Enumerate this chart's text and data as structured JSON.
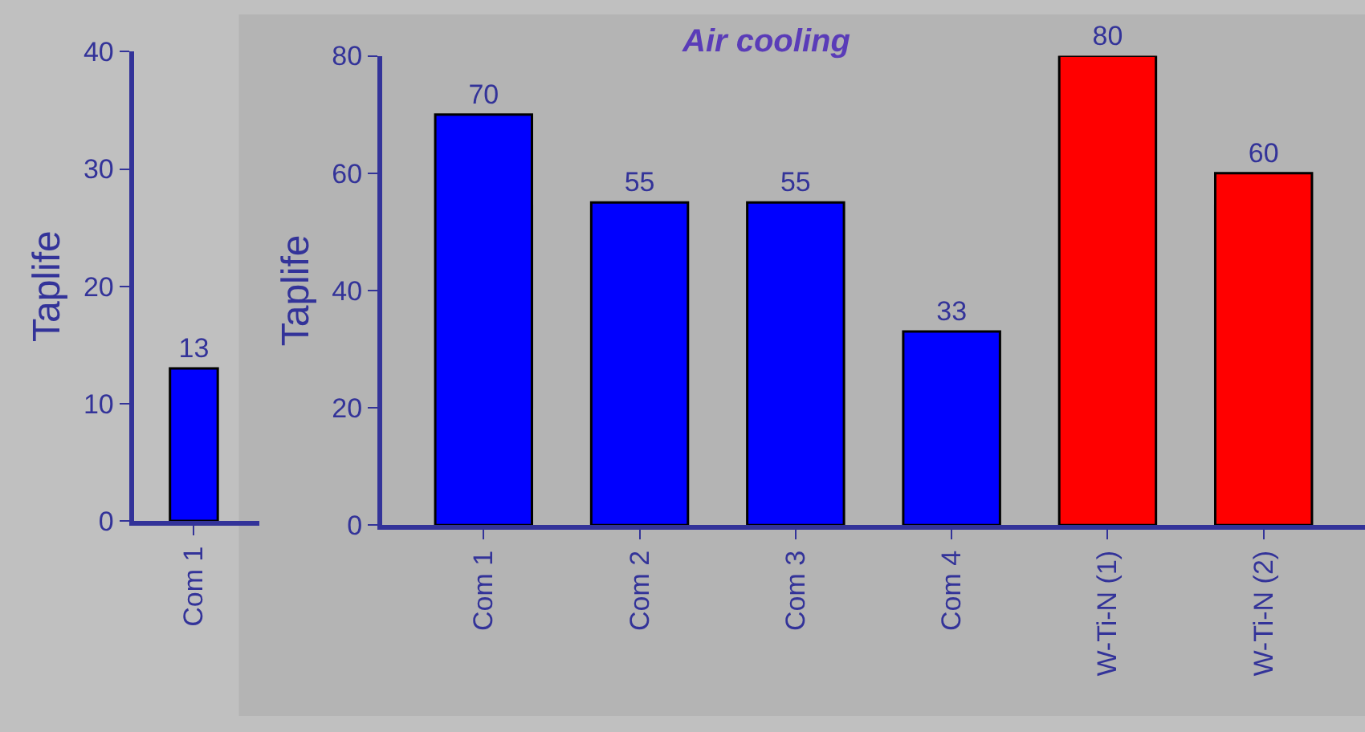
{
  "chart_data": [
    {
      "type": "bar",
      "ylabel": "Taplife",
      "categories": [
        "Com 1"
      ],
      "series": [
        {
          "color": "#0000ff",
          "values": [
            13
          ]
        }
      ],
      "ylim": [
        0,
        40
      ],
      "yticks": [
        0,
        10,
        20,
        30,
        40
      ],
      "data_labels": true
    },
    {
      "type": "bar",
      "title": "Air cooling",
      "ylabel": "Taplife",
      "categories": [
        "Com 1",
        "Com 2",
        "Com 3",
        "Com 4",
        "W-Ti-N (1)",
        "W-Ti-N (2)"
      ],
      "series": [
        {
          "colors": [
            "#0000ff",
            "#0000ff",
            "#0000ff",
            "#0000ff",
            "#ff0000",
            "#ff0000"
          ],
          "values": [
            70,
            55,
            55,
            33,
            80,
            60
          ]
        }
      ],
      "ylim": [
        0,
        80
      ],
      "yticks": [
        0,
        20,
        40,
        60,
        80
      ],
      "data_labels": true
    }
  ]
}
